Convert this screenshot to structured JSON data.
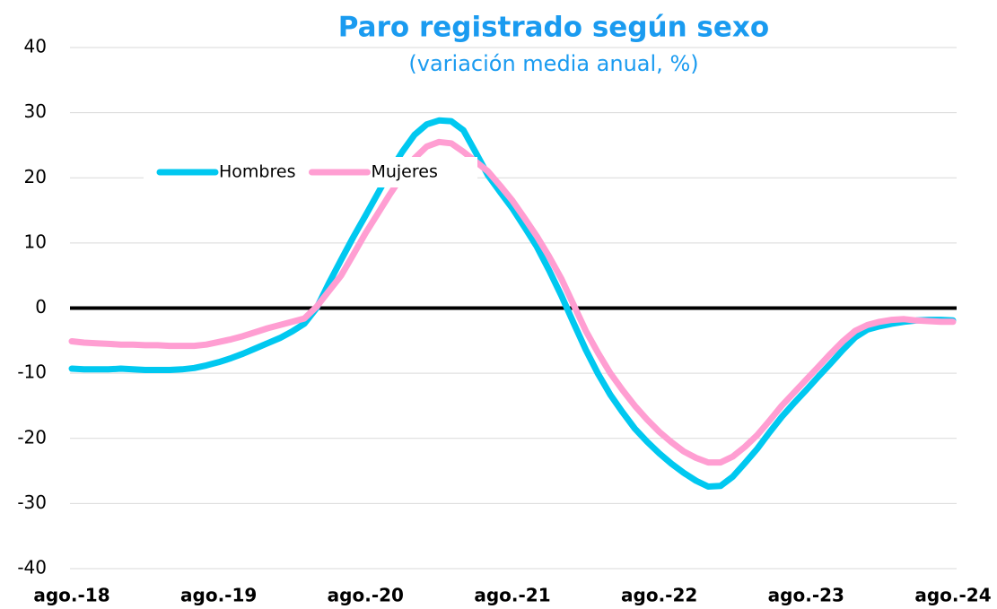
{
  "chart_data": {
    "type": "line",
    "title": "Paro registrado según sexo",
    "subtitle": "(variación media anual, %)",
    "categories": [
      "ago.-18",
      null,
      null,
      null,
      null,
      null,
      null,
      null,
      null,
      null,
      null,
      null,
      "ago.-19",
      null,
      null,
      null,
      null,
      null,
      null,
      null,
      null,
      null,
      null,
      null,
      "ago.-20",
      null,
      null,
      null,
      null,
      null,
      null,
      null,
      null,
      null,
      null,
      null,
      "ago.-21",
      null,
      null,
      null,
      null,
      null,
      null,
      null,
      null,
      null,
      null,
      null,
      "ago.-22",
      null,
      null,
      null,
      null,
      null,
      null,
      null,
      null,
      null,
      null,
      null,
      "ago.-23",
      null,
      null,
      null,
      null,
      null,
      null,
      null,
      null,
      null,
      null,
      null,
      "ago.-24"
    ],
    "series": [
      {
        "name": "Hombres",
        "color": "#00c8f0",
        "values": [
          -9.3,
          -9.4,
          -9.4,
          -9.4,
          -9.3,
          -9.4,
          -9.5,
          -9.5,
          -9.5,
          -9.4,
          -9.2,
          -8.8,
          -8.3,
          -7.7,
          -7.0,
          -6.2,
          -5.4,
          -4.6,
          -3.6,
          -2.4,
          0.0,
          3.8,
          7.4,
          10.9,
          14.2,
          17.6,
          21.0,
          24.0,
          26.6,
          28.2,
          28.8,
          28.7,
          27.3,
          23.9,
          20.4,
          17.8,
          15.3,
          12.4,
          9.4,
          5.8,
          1.9,
          -2.3,
          -6.4,
          -10.1,
          -13.3,
          -16.0,
          -18.5,
          -20.5,
          -22.3,
          -23.9,
          -25.3,
          -26.5,
          -27.4,
          -27.3,
          -25.9,
          -23.8,
          -21.6,
          -19.1,
          -16.7,
          -14.6,
          -12.6,
          -10.5,
          -8.5,
          -6.4,
          -4.5,
          -3.3,
          -2.8,
          -2.4,
          -2.1,
          -1.9,
          -1.8,
          -1.8,
          -1.9
        ]
      },
      {
        "name": "Mujeres",
        "color": "#ff9ed2",
        "values": [
          -5.1,
          -5.3,
          -5.4,
          -5.5,
          -5.6,
          -5.6,
          -5.7,
          -5.7,
          -5.8,
          -5.8,
          -5.8,
          -5.6,
          -5.2,
          -4.8,
          -4.3,
          -3.7,
          -3.1,
          -2.6,
          -2.1,
          -1.6,
          0.2,
          2.6,
          5.0,
          8.2,
          11.5,
          14.5,
          17.5,
          20.3,
          23.0,
          24.8,
          25.5,
          25.3,
          24.0,
          22.5,
          21.0,
          18.8,
          16.5,
          13.8,
          11.0,
          7.9,
          4.5,
          0.5,
          -3.5,
          -6.9,
          -10.0,
          -12.6,
          -15.0,
          -17.1,
          -19.0,
          -20.6,
          -22.0,
          -23.0,
          -23.7,
          -23.7,
          -22.8,
          -21.3,
          -19.5,
          -17.3,
          -15.0,
          -13.0,
          -11.0,
          -9.0,
          -7.0,
          -5.1,
          -3.5,
          -2.6,
          -2.1,
          -1.8,
          -1.7,
          -1.9,
          -2.0,
          -2.1,
          -2.1
        ]
      }
    ],
    "ylim": [
      -40,
      40
    ],
    "yticks": [
      40,
      30,
      20,
      10,
      0,
      -10,
      -20,
      -30,
      -40
    ],
    "grid": true,
    "legend": "upper left"
  }
}
